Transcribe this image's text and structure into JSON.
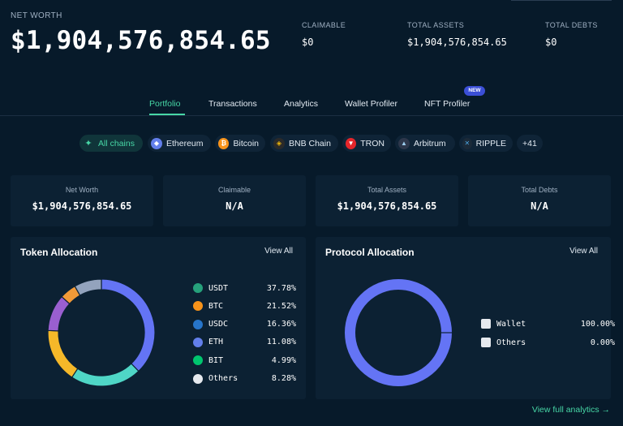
{
  "header": {
    "net_worth_label": "NET WORTH",
    "net_worth_value": "$1,904,576,854.65",
    "stats": [
      {
        "label": "CLAIMABLE",
        "value": "$0"
      },
      {
        "label": "TOTAL ASSETS",
        "value": "$1,904,576,854.65"
      },
      {
        "label": "TOTAL DEBTS",
        "value": "$0"
      }
    ]
  },
  "tabs": [
    {
      "label": "Portfolio",
      "active": true
    },
    {
      "label": "Transactions"
    },
    {
      "label": "Analytics"
    },
    {
      "label": "Wallet Profiler"
    },
    {
      "label": "NFT Profiler",
      "badge": "NEW"
    }
  ],
  "chains": [
    {
      "label": "All chains",
      "icon": "all-chains-icon",
      "color": "#47d7a6",
      "active": true
    },
    {
      "label": "Ethereum",
      "icon": "ethereum-icon",
      "color": "#627eea"
    },
    {
      "label": "Bitcoin",
      "icon": "bitcoin-icon",
      "color": "#f7931a"
    },
    {
      "label": "BNB Chain",
      "icon": "bnb-icon",
      "color": "#f0b90b"
    },
    {
      "label": "TRON",
      "icon": "tron-icon",
      "color": "#e5252a"
    },
    {
      "label": "Arbitrum",
      "icon": "arbitrum-icon",
      "color": "#2d374b"
    },
    {
      "label": "RIPPLE",
      "icon": "ripple-icon",
      "color": "#23292f"
    },
    {
      "label": "+41"
    }
  ],
  "summary_cards": [
    {
      "label": "Net Worth",
      "value": "$1,904,576,854.65"
    },
    {
      "label": "Claimable",
      "value": "N/A"
    },
    {
      "label": "Total Assets",
      "value": "$1,904,576,854.65"
    },
    {
      "label": "Total Debts",
      "value": "N/A"
    }
  ],
  "token_allocation": {
    "title": "Token Allocation",
    "view_all": "View All",
    "items": [
      {
        "name": "USDT",
        "pct": "37.78%",
        "value": 37.78,
        "color": "#6474f5",
        "icon": "usdt-icon",
        "icon_color": "#26a17b"
      },
      {
        "name": "BTC",
        "pct": "21.52%",
        "value": 21.52,
        "color": "#4fd6c6",
        "icon": "btc-icon",
        "icon_color": "#f7931a"
      },
      {
        "name": "USDC",
        "pct": "16.36%",
        "value": 16.36,
        "color": "#f5b829",
        "icon": "usdc-icon",
        "icon_color": "#2775ca"
      },
      {
        "name": "ETH",
        "pct": "11.08%",
        "value": 11.08,
        "color": "#9a5fd0",
        "icon": "eth-icon",
        "icon_color": "#627eea"
      },
      {
        "name": "BIT",
        "pct": "4.99%",
        "value": 4.99,
        "color": "#f29a38",
        "icon": "bit-icon",
        "icon_color": "#00c56e"
      },
      {
        "name": "Others",
        "pct": "8.28%",
        "value": 8.28,
        "color": "#93a3bd",
        "icon": "others-icon",
        "icon_color": "#e6e9ee"
      }
    ]
  },
  "protocol_allocation": {
    "title": "Protocol Allocation",
    "view_all": "View All",
    "items": [
      {
        "name": "Wallet",
        "pct": "100.00%",
        "value": 100.0,
        "color": "#6474f5",
        "icon": "wallet-icon"
      },
      {
        "name": "Others",
        "pct": "0.00%",
        "value": 0.0,
        "color": "#e6e9ee",
        "icon": "others-icon"
      }
    ]
  },
  "footer": {
    "view_full_analytics": "View full analytics",
    "arrow": "→"
  }
}
